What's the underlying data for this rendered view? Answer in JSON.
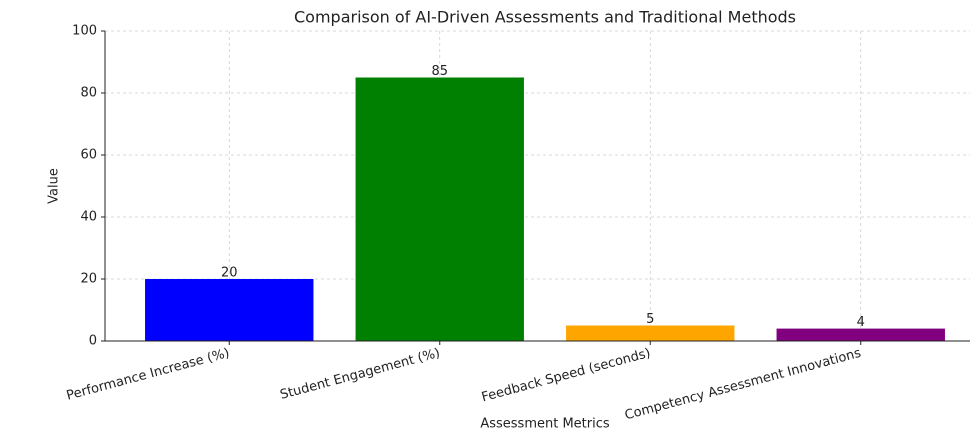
{
  "chart_data": {
    "type": "bar",
    "title": "Comparison of AI-Driven Assessments and Traditional Methods",
    "xlabel": "Assessment Metrics",
    "ylabel": "Value",
    "categories": [
      "Performance Increase (%)",
      "Student Engagement (%)",
      "Feedback Speed (seconds)",
      "Competency Assessment Innovations"
    ],
    "values": [
      20,
      85,
      5,
      4
    ],
    "colors": [
      "#0000ff",
      "#008000",
      "#ffa500",
      "#800080"
    ],
    "ylim": [
      0,
      100
    ],
    "yticks": [
      0,
      20,
      40,
      60,
      80,
      100
    ],
    "grid": true
  }
}
